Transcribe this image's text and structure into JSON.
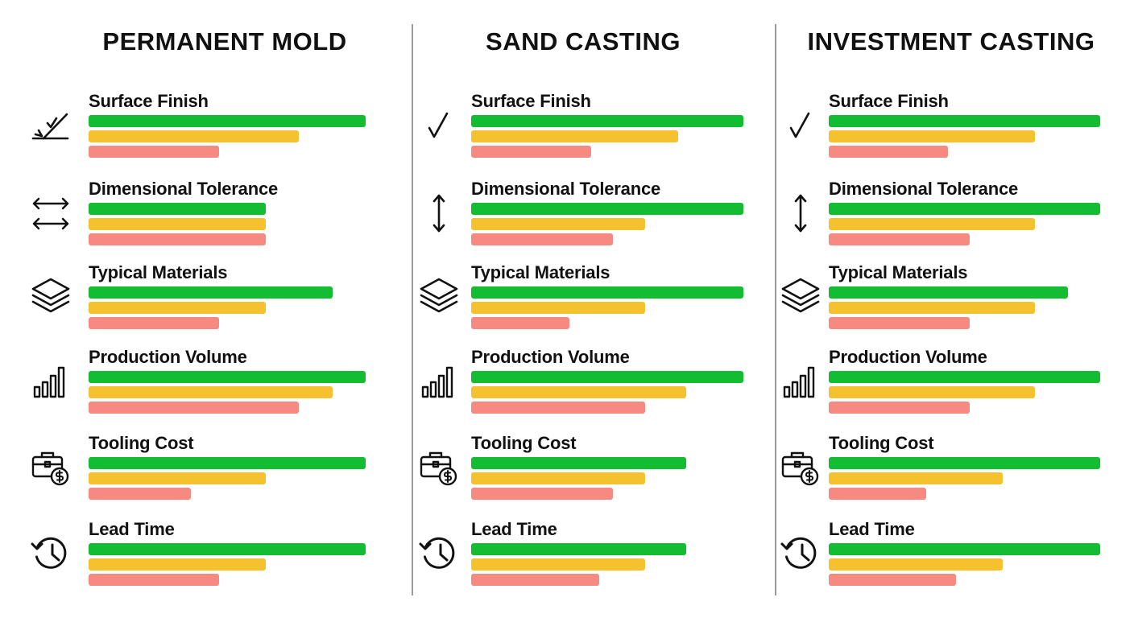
{
  "chart_data": [
    {
      "type": "bar",
      "title": "PERMANENT MOLD",
      "categories": [
        "Surface Finish",
        "Dimensional Tolerance",
        "Typical Materials",
        "Production Volume",
        "Tooling Cost",
        "Lead Time"
      ],
      "icons": [
        "surface-finish-icon",
        "double-arrow-icon",
        "layers-icon",
        "bar-chart-icon",
        "briefcase-dollar-icon",
        "clock-history-icon"
      ],
      "series": [
        {
          "color": "#13bd32",
          "values": [
            1.0,
            0.64,
            0.88,
            1.0,
            1.0,
            1.0
          ]
        },
        {
          "color": "#f6c12f",
          "values": [
            0.76,
            0.64,
            0.64,
            0.88,
            0.64,
            0.64
          ]
        },
        {
          "color": "#f78a80",
          "values": [
            0.47,
            0.64,
            0.47,
            0.76,
            0.37,
            0.47
          ]
        }
      ],
      "ylim": [
        0,
        1
      ],
      "grid": false
    },
    {
      "type": "bar",
      "title": "SAND CASTING",
      "categories": [
        "Surface Finish",
        "Dimensional Tolerance",
        "Typical Materials",
        "Production Volume",
        "Tooling Cost",
        "Lead Time"
      ],
      "icons": [
        "check-mark-icon",
        "vertical-double-arrow-icon",
        "layers-icon",
        "bar-chart-icon",
        "briefcase-dollar-icon",
        "clock-history-icon"
      ],
      "series": [
        {
          "color": "#13bd32",
          "values": [
            1.0,
            1.0,
            1.0,
            1.0,
            0.79,
            0.79
          ]
        },
        {
          "color": "#f6c12f",
          "values": [
            0.76,
            0.64,
            0.64,
            0.79,
            0.64,
            0.64
          ]
        },
        {
          "color": "#f78a80",
          "values": [
            0.44,
            0.52,
            0.36,
            0.64,
            0.52,
            0.47
          ]
        }
      ],
      "ylim": [
        0,
        1
      ],
      "grid": false
    },
    {
      "type": "bar",
      "title": "INVESTMENT CASTING",
      "categories": [
        "Surface Finish",
        "Dimensional Tolerance",
        "Typical Materials",
        "Production Volume",
        "Tooling Cost",
        "Lead Time"
      ],
      "icons": [
        "check-mark-icon",
        "vertical-double-arrow-icon",
        "layers-icon",
        "bar-chart-icon",
        "briefcase-dollar-icon",
        "clock-history-icon"
      ],
      "series": [
        {
          "color": "#13bd32",
          "values": [
            1.0,
            1.0,
            0.88,
            1.0,
            1.0,
            1.0
          ]
        },
        {
          "color": "#f6c12f",
          "values": [
            0.76,
            0.76,
            0.76,
            0.76,
            0.64,
            0.64
          ]
        },
        {
          "color": "#f78a80",
          "values": [
            0.44,
            0.52,
            0.52,
            0.52,
            0.36,
            0.47
          ]
        }
      ],
      "ylim": [
        0,
        1
      ],
      "grid": false
    }
  ]
}
